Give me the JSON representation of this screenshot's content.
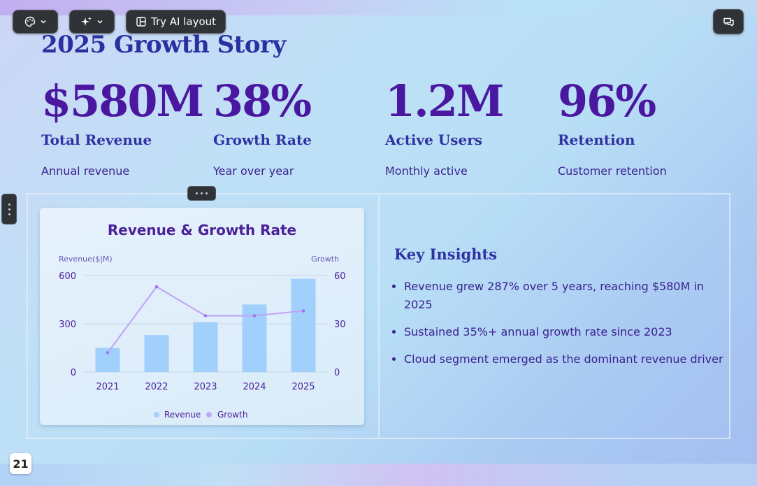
{
  "toolbar": {
    "theme_button_icon": "palette-icon",
    "ai_button_icon": "sparkles-icon",
    "try_ai_layout_label": "Try AI layout",
    "try_ai_layout_icon": "layout-icon",
    "chat_icon": "chat-icon"
  },
  "slide": {
    "title": "2025 Growth Story",
    "stats": [
      {
        "value": "$580M",
        "label": "Total Revenue",
        "description": "Annual revenue"
      },
      {
        "value": "38%",
        "label": "Growth Rate",
        "description": "Year over year"
      },
      {
        "value": "1.2M",
        "label": "Active Users",
        "description": "Monthly active"
      },
      {
        "value": "96%",
        "label": "Retention",
        "description": "Customer retention"
      }
    ],
    "insights": {
      "title": "Key Insights",
      "items": [
        "Revenue grew 287% over 5 years, reaching $580M in 2025",
        "Sustained 35%+ annual growth rate since 2023",
        "Cloud segment emerged as the dominant revenue driver"
      ]
    }
  },
  "page_number": "21",
  "colors": {
    "accent": "#4a17a0",
    "heading": "#3132a3",
    "bar": "#a0d0fb",
    "line": "#c0a8f6",
    "toolbar_bg": "#2f3338"
  },
  "chart_data": {
    "type": "bar",
    "title": "Revenue & Growth Rate",
    "categories": [
      "2021",
      "2022",
      "2023",
      "2024",
      "2025"
    ],
    "y_left_label": "Revenue($|M)",
    "y_right_label": "Growth",
    "y_left_ticks": [
      "0",
      "300",
      "600"
    ],
    "y_right_ticks": [
      "0",
      "30",
      "60"
    ],
    "ylim_left": [
      0,
      600
    ],
    "ylim_right": [
      0,
      60
    ],
    "grid": true,
    "legend_position": "bottom",
    "series": [
      {
        "name": "Revenue",
        "type": "bar",
        "axis": "left",
        "color": "#a0d0fb",
        "values": [
          150,
          230,
          310,
          420,
          580
        ]
      },
      {
        "name": "Growth",
        "type": "line",
        "axis": "right",
        "color": "#c0a8f6",
        "values": [
          12,
          53,
          35,
          35,
          38
        ]
      }
    ]
  }
}
